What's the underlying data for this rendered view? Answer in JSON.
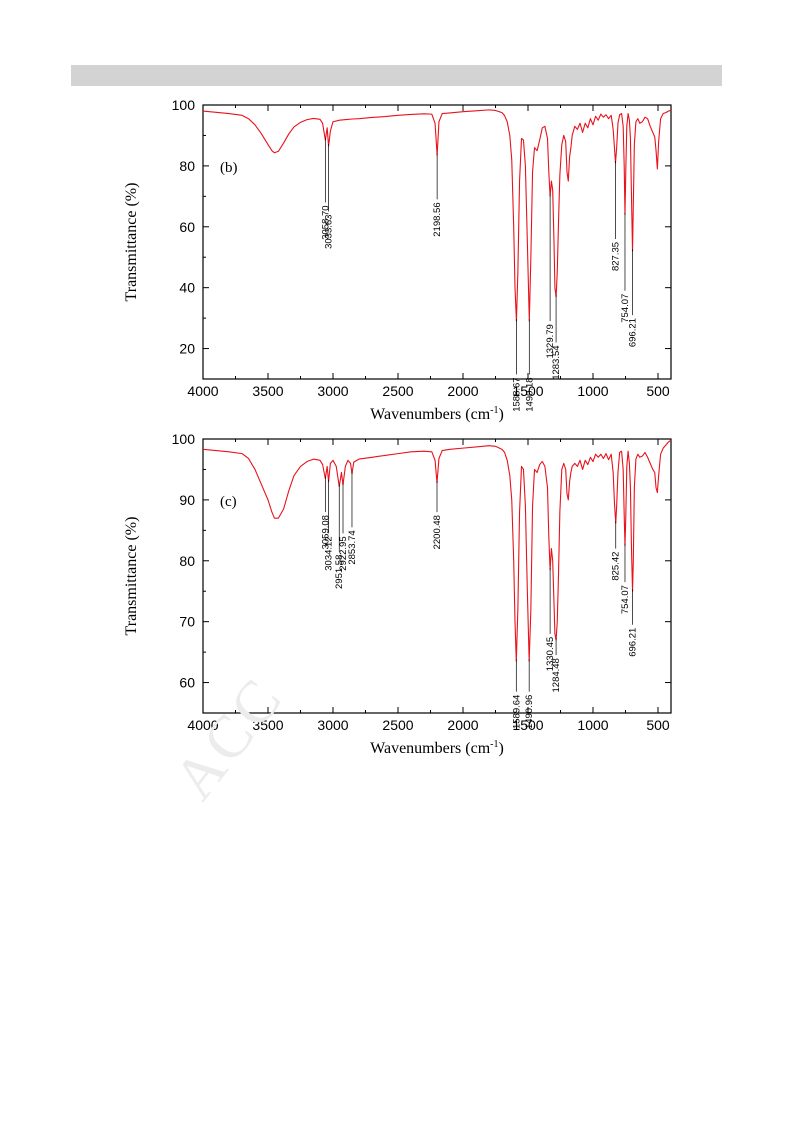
{
  "watermark": "ACC",
  "chart_data": [
    {
      "type": "line",
      "panel_label": "(b)",
      "xlabel": "Wavenumbers (cm",
      "xlabel_sup": "-1",
      "xlabel_end": ")",
      "ylabel": "Transmittance (%)",
      "xlim": [
        4000,
        400
      ],
      "ylim": [
        10,
        100
      ],
      "x_ticks": [
        4000,
        3500,
        3000,
        2500,
        2000,
        1500,
        1000,
        500
      ],
      "y_ticks": [
        20,
        40,
        60,
        80,
        100
      ],
      "line_color": "#e8121c",
      "x": [
        4000,
        3900,
        3800,
        3700,
        3650,
        3600,
        3550,
        3500,
        3470,
        3450,
        3420,
        3380,
        3340,
        3300,
        3250,
        3200,
        3150,
        3100,
        3080,
        3059,
        3045,
        3034,
        3020,
        3000,
        2950,
        2900,
        2850,
        2800,
        2700,
        2600,
        2500,
        2400,
        2300,
        2240,
        2215,
        2199,
        2185,
        2160,
        2100,
        2000,
        1900,
        1800,
        1750,
        1700,
        1680,
        1660,
        1640,
        1625,
        1610,
        1600,
        1589,
        1578,
        1565,
        1550,
        1535,
        1520,
        1505,
        1490,
        1478,
        1465,
        1450,
        1430,
        1410,
        1390,
        1370,
        1350,
        1340,
        1330,
        1320,
        1310,
        1300,
        1293,
        1284,
        1275,
        1265,
        1255,
        1240,
        1225,
        1210,
        1200,
        1190,
        1180,
        1170,
        1160,
        1140,
        1120,
        1100,
        1080,
        1060,
        1040,
        1020,
        1000,
        980,
        960,
        940,
        920,
        900,
        880,
        860,
        845,
        835,
        827,
        818,
        808,
        795,
        780,
        768,
        760,
        754,
        748,
        740,
        730,
        720,
        712,
        704,
        696,
        690,
        682,
        670,
        655,
        640,
        620,
        600,
        580,
        560,
        540,
        525,
        515,
        505,
        495,
        480,
        460,
        440,
        420,
        400
      ],
      "y": [
        98,
        97.6,
        97.2,
        96.6,
        95.5,
        93.5,
        90.5,
        87,
        85,
        84.3,
        84.8,
        87.5,
        90.5,
        92.8,
        94.3,
        95.2,
        95.6,
        95.3,
        94,
        88.5,
        92.5,
        86.5,
        91.5,
        94.5,
        95,
        95.2,
        95.4,
        95.5,
        95.9,
        96.2,
        96.6,
        96.9,
        97.1,
        97,
        94,
        83.5,
        94.5,
        97.2,
        97.4,
        97.8,
        98.1,
        98.4,
        98.2,
        97.5,
        96.5,
        94.5,
        90,
        82,
        60,
        40,
        29,
        45,
        75,
        89,
        88.5,
        80,
        55,
        29,
        50,
        78,
        86,
        85,
        88.5,
        92.5,
        93,
        89,
        78,
        70,
        75,
        72,
        55,
        40,
        37,
        45,
        62,
        77,
        87,
        90,
        88,
        78,
        75,
        83,
        86,
        90,
        93,
        92,
        94,
        91,
        94,
        92.5,
        95.5,
        93.5,
        96.3,
        95,
        97,
        96,
        96.8,
        95.5,
        96.6,
        92,
        86,
        81,
        86,
        94,
        96.8,
        97.2,
        93,
        80,
        64,
        78,
        93,
        97.2,
        95,
        89,
        70,
        52,
        67,
        87,
        94.5,
        95.5,
        94,
        94.5,
        96,
        95.5,
        93,
        91,
        89.5,
        85,
        79,
        88,
        95.5,
        97.2,
        97.5,
        98,
        98.3
      ],
      "peak_labels": [
        {
          "text": "3058.70",
          "x": 3059,
          "y": 88.5,
          "label_y": 68
        },
        {
          "text": "3033.63",
          "x": 3034,
          "y": 86.5,
          "label_y": 65
        },
        {
          "text": "2198.56",
          "x": 2199,
          "y": 83.5,
          "label_y": 69
        },
        {
          "text": "1588.67",
          "x": 1589,
          "y": 29,
          "label_y": 11.5
        },
        {
          "text": "1490.18",
          "x": 1490,
          "y": 29,
          "label_y": 11.5
        },
        {
          "text": "1329.79",
          "x": 1330,
          "y": 70,
          "label_y": 29
        },
        {
          "text": "1283.54",
          "x": 1284,
          "y": 37,
          "label_y": 22
        },
        {
          "text": "827.35",
          "x": 827,
          "y": 81,
          "label_y": 56
        },
        {
          "text": "754.07",
          "x": 754,
          "y": 64,
          "label_y": 39
        },
        {
          "text": "696.21",
          "x": 696,
          "y": 52,
          "label_y": 31
        }
      ]
    },
    {
      "type": "line",
      "panel_label": "(c)",
      "xlabel": "Wavenumbers (cm",
      "xlabel_sup": "-1",
      "xlabel_end": ")",
      "ylabel": "Transmittance (%)",
      "xlim": [
        4000,
        400
      ],
      "ylim": [
        55,
        100
      ],
      "x_ticks": [
        4000,
        3500,
        3000,
        2500,
        2000,
        1500,
        1000,
        500
      ],
      "y_ticks": [
        60,
        70,
        80,
        90,
        100
      ],
      "line_color": "#e8121c",
      "x": [
        4000,
        3900,
        3800,
        3700,
        3650,
        3600,
        3550,
        3500,
        3470,
        3450,
        3420,
        3380,
        3340,
        3300,
        3250,
        3200,
        3150,
        3100,
        3080,
        3059,
        3045,
        3034,
        3020,
        3000,
        2975,
        2952,
        2935,
        2923,
        2905,
        2885,
        2865,
        2854,
        2840,
        2800,
        2700,
        2600,
        2500,
        2400,
        2300,
        2240,
        2215,
        2200,
        2185,
        2160,
        2100,
        2000,
        1900,
        1800,
        1750,
        1700,
        1680,
        1660,
        1640,
        1625,
        1610,
        1600,
        1590,
        1578,
        1565,
        1550,
        1535,
        1520,
        1505,
        1491,
        1478,
        1465,
        1450,
        1430,
        1410,
        1390,
        1370,
        1350,
        1340,
        1330,
        1320,
        1310,
        1300,
        1293,
        1284,
        1275,
        1265,
        1255,
        1240,
        1225,
        1210,
        1200,
        1190,
        1180,
        1170,
        1160,
        1140,
        1120,
        1100,
        1080,
        1060,
        1040,
        1020,
        1000,
        980,
        960,
        940,
        920,
        900,
        880,
        860,
        845,
        835,
        825,
        818,
        808,
        795,
        780,
        768,
        760,
        754,
        748,
        740,
        730,
        720,
        712,
        704,
        696,
        690,
        682,
        670,
        655,
        640,
        620,
        600,
        580,
        560,
        540,
        525,
        515,
        505,
        495,
        480,
        460,
        440,
        420,
        400
      ],
      "y": [
        98.3,
        98.1,
        97.9,
        97.6,
        96.8,
        95,
        92.5,
        90,
        88,
        87,
        87,
        88.5,
        91.5,
        94,
        95.5,
        96.3,
        96.7,
        96.5,
        95.8,
        93.5,
        95.5,
        93,
        96,
        96.5,
        95.5,
        92.2,
        94.5,
        92.5,
        95.5,
        96.5,
        96,
        94.3,
        96.2,
        96.7,
        97,
        97.3,
        97.6,
        97.9,
        98,
        97.9,
        96.5,
        92.8,
        96.8,
        98.1,
        98.3,
        98.5,
        98.7,
        98.9,
        98.8,
        98.3,
        97.8,
        96.5,
        94,
        90,
        80,
        70,
        63.5,
        72,
        88,
        95.5,
        95,
        89,
        75,
        63.5,
        72,
        89,
        95,
        94.5,
        95.8,
        96.3,
        95.5,
        92,
        84,
        78.5,
        82,
        80,
        73,
        68,
        67,
        70,
        78,
        88,
        95,
        96,
        95,
        91,
        90,
        93,
        94.5,
        95.5,
        96,
        95.5,
        96.5,
        95,
        96.5,
        95.8,
        97,
        96.3,
        97.5,
        97,
        97.5,
        96.8,
        97.6,
        96.6,
        97.5,
        94.5,
        89.5,
        86.2,
        89,
        94.5,
        97.8,
        98,
        95,
        87.5,
        82.5,
        87,
        95.5,
        98,
        96,
        92,
        82,
        75,
        80,
        92,
        96.7,
        97.5,
        97,
        97.2,
        97.8,
        97,
        96,
        95,
        94.5,
        92,
        91.2,
        94,
        97.5,
        98.5,
        99,
        99.5,
        99.8
      ],
      "peak_labels": [
        {
          "text": "3059.08",
          "x": 3059,
          "y": 93.5,
          "label_y": 88
        },
        {
          "text": "3034.12",
          "x": 3034,
          "y": 93,
          "label_y": 84.5
        },
        {
          "text": "2951.58",
          "x": 2952,
          "y": 92.2,
          "label_y": 81.5
        },
        {
          "text": "2922.95",
          "x": 2923,
          "y": 92.5,
          "label_y": 84.5
        },
        {
          "text": "2853.74",
          "x": 2854,
          "y": 94.3,
          "label_y": 85.5
        },
        {
          "text": "2200.48",
          "x": 2200,
          "y": 92.8,
          "label_y": 88
        },
        {
          "text": "1589.64",
          "x": 1590,
          "y": 63.5,
          "label_y": 58.5
        },
        {
          "text": "1490.96",
          "x": 1491,
          "y": 63.5,
          "label_y": 58.5
        },
        {
          "text": "1330.45",
          "x": 1330,
          "y": 78.5,
          "label_y": 68
        },
        {
          "text": "1284.48",
          "x": 1284,
          "y": 67,
          "label_y": 64.5
        },
        {
          "text": "825.42",
          "x": 825,
          "y": 86.2,
          "label_y": 82
        },
        {
          "text": "754.07",
          "x": 754,
          "y": 82.5,
          "label_y": 76.5
        },
        {
          "text": "696.21",
          "x": 696,
          "y": 75,
          "label_y": 69.5
        }
      ]
    }
  ]
}
